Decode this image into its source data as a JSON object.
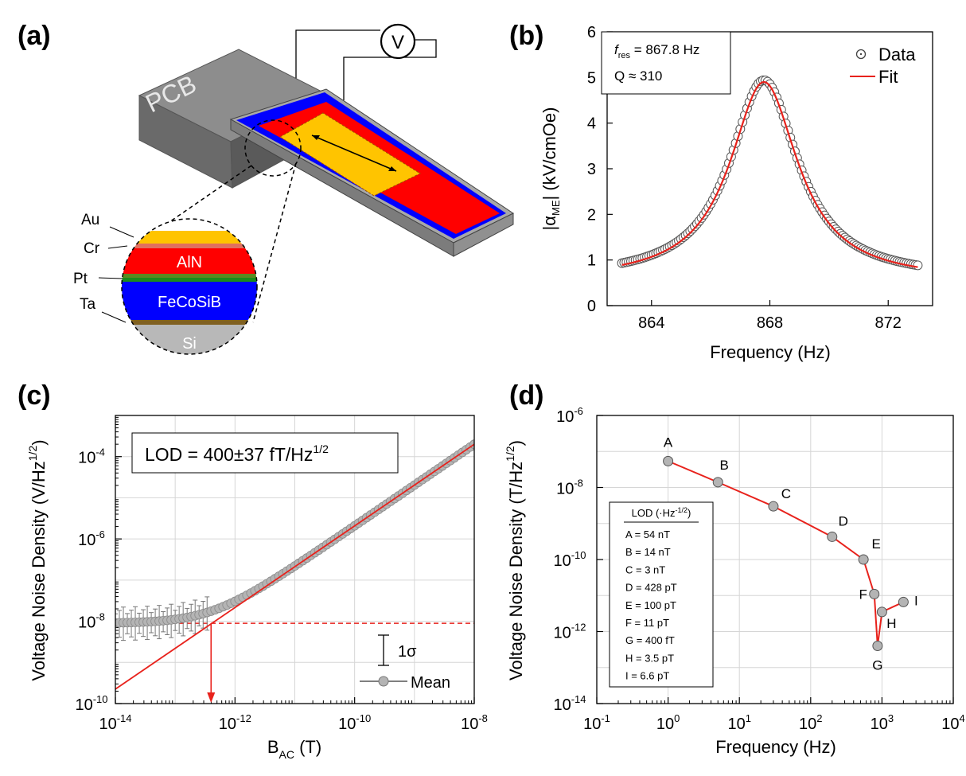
{
  "panels": {
    "a": {
      "label": "(a)",
      "pcb_label": "PCB",
      "meter_label": "V",
      "layer_labels": [
        "Au",
        "Cr",
        "Pt",
        "Ta"
      ],
      "layer_names": [
        "AlN",
        "FeCoSiB",
        "Si"
      ]
    },
    "b": {
      "label": "(b)",
      "fres_sym": "f",
      "fres_sub": "res",
      "fres_text": " = 867.8 Hz",
      "q_text": "Q  ≈ 310"
    },
    "c": {
      "label": "(c)",
      "lod_text": "LOD = 400±37 fT/Hz",
      "lod_sup": "1/2",
      "errbar_label": "1σ",
      "mean_label": "Mean"
    },
    "d": {
      "label": "(d)",
      "table_header": "LOD (·Hz",
      "table_header_sup": "-1/2",
      "table_header_end": ")"
    }
  },
  "colors": {
    "fit": "#e8221c",
    "marker_fill": "#b4b4b4",
    "blue": "#0000ff",
    "red": "#ff0000",
    "yellow": "#ffc400",
    "gray_box": "#7a7a7a"
  },
  "chart_data": [
    {
      "panel": "b",
      "type": "scatter",
      "xlabel": "Frequency (Hz)",
      "ylabel_pre": "|α",
      "ylabel_sub": "ME",
      "ylabel_post": "| (kV/cmOe)",
      "xlim": [
        862.5,
        873.5
      ],
      "ylim": [
        0,
        6
      ],
      "xticks": [
        864,
        868,
        872
      ],
      "yticks": [
        0,
        1,
        2,
        3,
        4,
        5,
        6
      ],
      "f_res": 867.8,
      "Q": 310,
      "peak": 4.9,
      "floor": 0.55,
      "x_range": [
        863,
        873
      ],
      "series": [
        {
          "name": "Data",
          "marker": "open-circle"
        },
        {
          "name": "Fit",
          "line": "red"
        }
      ]
    },
    {
      "panel": "c",
      "type": "scatter",
      "xlabel": "B",
      "xlabel_sub": "AC",
      "xlabel_post": " (T)",
      "ylabel": "Voltage Noise Density (V/Hz",
      "ylabel_sup": "1/2",
      "ylabel_end": ")",
      "x_scale": "log",
      "y_scale": "log",
      "xlim_exp": [
        -14,
        -8
      ],
      "ylim_exp": [
        -10,
        -3
      ],
      "xtick_exps": [
        -14,
        -12,
        -10,
        -8
      ],
      "ytick_exps": [
        -10,
        -8,
        -6,
        -4
      ],
      "tick_base": "10",
      "noise_floor_exp": -8.05,
      "lod_exp": -12.4,
      "fit_line_exp": {
        "x": [
          -14,
          -8
        ],
        "y": [
          -9.65,
          -3.7
        ]
      },
      "data_range_exp": [
        -14,
        -8
      ],
      "series": [
        {
          "name": "Mean",
          "marker": "filled-gray-circle"
        },
        {
          "name": "Fit",
          "line": "red"
        }
      ]
    },
    {
      "panel": "d",
      "type": "scatter",
      "xlabel": "Frequency (Hz)",
      "ylabel": "Voltage Noise Density (T/Hz",
      "ylabel_sup": "1/2",
      "ylabel_end": ")",
      "x_scale": "log",
      "y_scale": "log",
      "xlim_exp": [
        -1,
        4
      ],
      "ylim_exp": [
        -14,
        -6
      ],
      "xtick_exps": [
        -1,
        0,
        1,
        2,
        3,
        4
      ],
      "ytick_exps": [
        -14,
        -12,
        -10,
        -8,
        -6
      ],
      "tick_base": "10",
      "points": [
        {
          "label": "A",
          "x": 1,
          "y": 5.4e-08,
          "lod": "A =   54 nT"
        },
        {
          "label": "B",
          "x": 5,
          "y": 1.4e-08,
          "lod": "B =   14 nT"
        },
        {
          "label": "C",
          "x": 30,
          "y": 3e-09,
          "lod": "C =     3 nT"
        },
        {
          "label": "D",
          "x": 200,
          "y": 4.28e-10,
          "lod": "D = 428 pT"
        },
        {
          "label": "E",
          "x": 550,
          "y": 1e-10,
          "lod": "E = 100 pT"
        },
        {
          "label": "F",
          "x": 780,
          "y": 1.1e-11,
          "lod": "F =   11 pT"
        },
        {
          "label": "G",
          "x": 867.8,
          "y": 4e-13,
          "lod": "G = 400  fT"
        },
        {
          "label": "H",
          "x": 1000,
          "y": 3.5e-12,
          "lod": "H =  3.5 pT"
        },
        {
          "label": "I",
          "x": 2000,
          "y": 6.6e-12,
          "lod": "I  =  6.6 pT"
        }
      ]
    }
  ]
}
